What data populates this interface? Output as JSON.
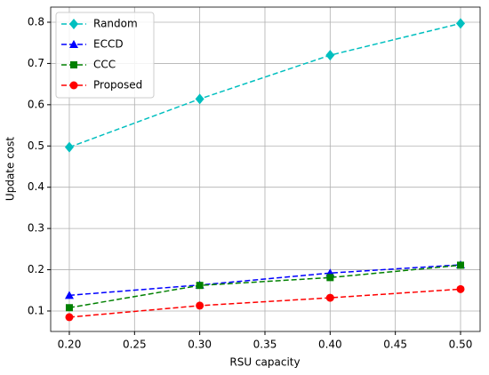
{
  "chart_data": {
    "type": "line",
    "xlabel": "RSU capacity",
    "ylabel": "Update cost",
    "x": [
      0.2,
      0.3,
      0.4,
      0.5
    ],
    "series": [
      {
        "name": "Random",
        "color": "#00bfbf",
        "marker": "diamond",
        "values": [
          0.497,
          0.614,
          0.72,
          0.797
        ]
      },
      {
        "name": "ECCD",
        "color": "#0000ff",
        "marker": "triangle",
        "values": [
          0.138,
          0.163,
          0.192,
          0.212
        ]
      },
      {
        "name": "CCC",
        "color": "#008000",
        "marker": "square",
        "values": [
          0.108,
          0.162,
          0.181,
          0.211
        ]
      },
      {
        "name": "Proposed",
        "color": "#ff0000",
        "marker": "circle",
        "values": [
          0.085,
          0.113,
          0.132,
          0.153
        ]
      }
    ],
    "xlim": [
      0.1857,
      0.515
    ],
    "ylim": [
      0.0504,
      0.8366
    ],
    "xticks": [
      {
        "value": 0.2,
        "label": "0.20"
      },
      {
        "value": 0.25,
        "label": "0.25"
      },
      {
        "value": 0.3,
        "label": "0.30"
      },
      {
        "value": 0.35,
        "label": "0.35"
      },
      {
        "value": 0.4,
        "label": "0.40"
      },
      {
        "value": 0.45,
        "label": "0.45"
      },
      {
        "value": 0.5,
        "label": "0.50"
      }
    ],
    "yticks": [
      0.1,
      0.2,
      0.3,
      0.4,
      0.5,
      0.6,
      0.7,
      0.8
    ],
    "grid": true,
    "legend": "upper left",
    "linestyle": "dashed"
  }
}
